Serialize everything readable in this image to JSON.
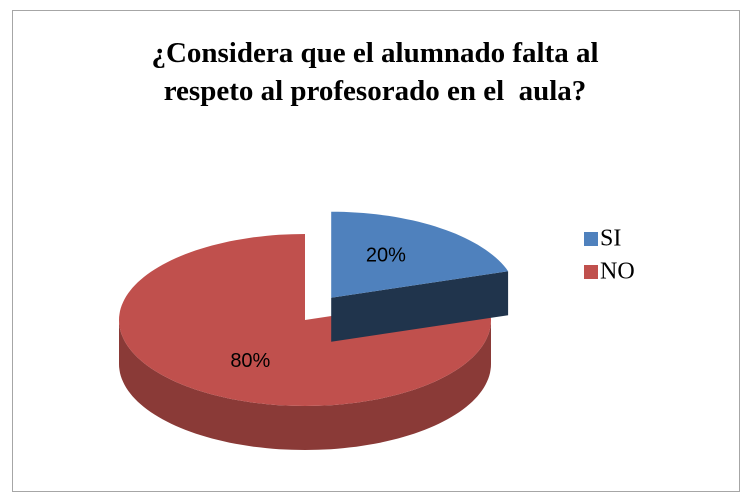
{
  "chart_data": {
    "type": "pie3d",
    "title": "¿Considera que el alumnado falta al respeto al profesorado en el  aula?",
    "categories": [
      "SI",
      "NO"
    ],
    "values": [
      20,
      80
    ],
    "value_labels": [
      "20%",
      "80%"
    ],
    "colors": [
      "#4f81bd",
      "#c0504d"
    ],
    "exploded": [
      true,
      false
    ],
    "legend": "right"
  }
}
